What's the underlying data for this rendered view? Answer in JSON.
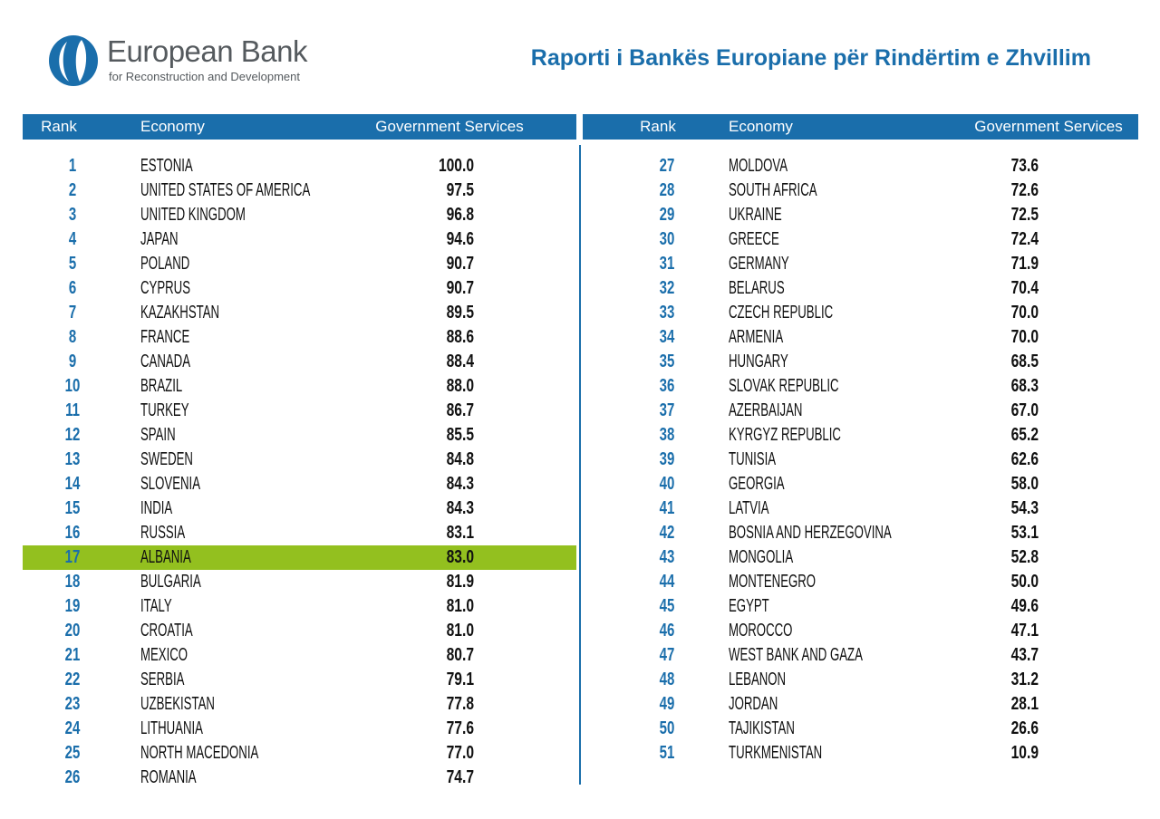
{
  "header": {
    "logo_title": "European Bank",
    "logo_subtitle": "for Reconstruction and Development",
    "title": "Raporti i Bankës Europiane për Rindërtim e Zhvillim"
  },
  "tables": [
    {
      "columns": [
        "Rank",
        "Economy",
        "Government Services"
      ],
      "rows": [
        [
          "1",
          "ESTONIA",
          "100.0"
        ],
        [
          "2",
          "UNITED STATES OF AMERICA",
          "97.5"
        ],
        [
          "3",
          "UNITED KINGDOM",
          "96.8"
        ],
        [
          "4",
          "JAPAN",
          "94.6"
        ],
        [
          "5",
          "POLAND",
          "90.7"
        ],
        [
          "6",
          "CYPRUS",
          "90.7"
        ],
        [
          "7",
          "KAZAKHSTAN",
          "89.5"
        ],
        [
          "8",
          "FRANCE",
          "88.6"
        ],
        [
          "9",
          "CANADA",
          "88.4"
        ],
        [
          "10",
          "BRAZIL",
          "88.0"
        ],
        [
          "11",
          "TURKEY",
          "86.7"
        ],
        [
          "12",
          "SPAIN",
          "85.5"
        ],
        [
          "13",
          "SWEDEN",
          "84.8"
        ],
        [
          "14",
          "SLOVENIA",
          "84.3"
        ],
        [
          "15",
          "INDIA",
          "84.3"
        ],
        [
          "16",
          "RUSSIA",
          "83.1"
        ],
        [
          "17",
          "ALBANIA",
          "83.0"
        ],
        [
          "18",
          "BULGARIA",
          "81.9"
        ],
        [
          "19",
          "ITALY",
          "81.0"
        ],
        [
          "20",
          "CROATIA",
          "81.0"
        ],
        [
          "21",
          "MEXICO",
          "80.7"
        ],
        [
          "22",
          "SERBIA",
          "79.1"
        ],
        [
          "23",
          "UZBEKISTAN",
          "77.8"
        ],
        [
          "24",
          "LITHUANIA",
          "77.6"
        ],
        [
          "25",
          "NORTH MACEDONIA",
          "77.0"
        ],
        [
          "26",
          "ROMANIA",
          "74.7"
        ]
      ]
    },
    {
      "columns": [
        "Rank",
        "Economy",
        "Government Services"
      ],
      "rows": [
        [
          "27",
          "MOLDOVA",
          "73.6"
        ],
        [
          "28",
          "SOUTH AFRICA",
          "72.6"
        ],
        [
          "29",
          "UKRAINE",
          "72.5"
        ],
        [
          "30",
          "GREECE",
          "72.4"
        ],
        [
          "31",
          "GERMANY",
          "71.9"
        ],
        [
          "32",
          "BELARUS",
          "70.4"
        ],
        [
          "33",
          "CZECH REPUBLIC",
          "70.0"
        ],
        [
          "34",
          "ARMENIA",
          "70.0"
        ],
        [
          "35",
          "HUNGARY",
          "68.5"
        ],
        [
          "36",
          "SLOVAK REPUBLIC",
          "68.3"
        ],
        [
          "37",
          "AZERBAIJAN",
          "67.0"
        ],
        [
          "38",
          "KYRGYZ REPUBLIC",
          "65.2"
        ],
        [
          "39",
          "TUNISIA",
          "62.6"
        ],
        [
          "40",
          "GEORGIA",
          "58.0"
        ],
        [
          "41",
          "LATVIA",
          "54.3"
        ],
        [
          "42",
          "BOSNIA AND HERZEGOVINA",
          "53.1"
        ],
        [
          "43",
          "MONGOLIA",
          "52.8"
        ],
        [
          "44",
          "MONTENEGRO",
          "50.0"
        ],
        [
          "45",
          "EGYPT",
          "49.6"
        ],
        [
          "46",
          "MOROCCO",
          "47.1"
        ],
        [
          "47",
          "WEST BANK AND GAZA",
          "43.7"
        ],
        [
          "48",
          "LEBANON",
          "31.2"
        ],
        [
          "49",
          "JORDAN",
          "28.1"
        ],
        [
          "50",
          "TAJIKISTAN",
          "26.6"
        ],
        [
          "51",
          "TURKMENISTAN",
          "10.9"
        ]
      ]
    }
  ]
}
